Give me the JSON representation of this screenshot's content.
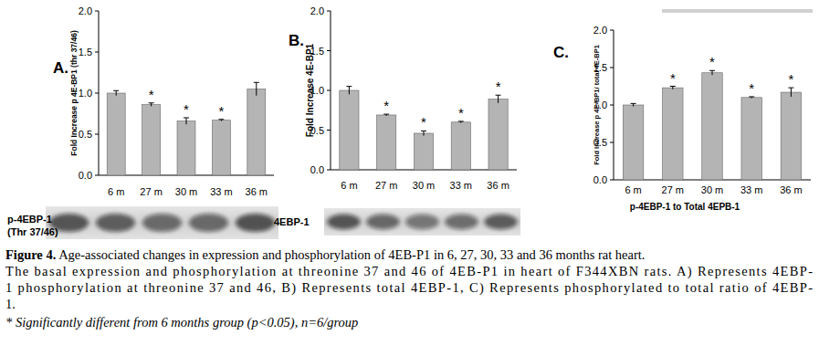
{
  "chart_data": [
    {
      "type": "bar",
      "panel_label": "A.",
      "y_label": "Fold Increase p 4E-BP1 (thr 37/46)",
      "categories": [
        "6 m",
        "27 m",
        "30 m",
        "33 m",
        "36 m"
      ],
      "values": [
        1,
        0.86,
        0.66,
        0.67,
        1.05
      ],
      "error": [
        0.03,
        0.02,
        0.04,
        0.01,
        0.08
      ],
      "annotations": [
        null,
        "*",
        "*",
        "*",
        null
      ],
      "ylim": [
        0,
        2
      ],
      "yticks": [
        {
          "value": 0,
          "label": "0.0"
        },
        0.5,
        {
          "value": 1,
          "label": "1.0"
        },
        1.5,
        {
          "value": 2,
          "label": "2.0"
        }
      ],
      "color": "#b4b4b4",
      "blot_label": [
        "p-4EBP-1",
        "(Thr 37/46)"
      ]
    },
    {
      "type": "bar",
      "panel_label": "B.",
      "y_label": "Fold Increase 4E-BP1",
      "categories": [
        "6 m",
        "27 m",
        "30 m",
        "33 m",
        "36 m"
      ],
      "values": [
        1,
        0.69,
        0.46,
        0.6,
        0.89
      ],
      "error": [
        0.05,
        0.01,
        0.03,
        0.01,
        0.05
      ],
      "annotations": [
        null,
        "*",
        "*",
        "*",
        "*"
      ],
      "ylim": [
        0,
        2
      ],
      "yticks": [
        {
          "value": 0,
          "label": "0.0"
        },
        0.5,
        {
          "value": 1,
          "label": "1.0"
        },
        1.5,
        {
          "value": 2,
          "label": "2.0"
        }
      ],
      "color": "#b4b4b4",
      "blot_label": [
        "4EBP-1"
      ]
    },
    {
      "type": "bar",
      "panel_label": "C.",
      "y_label": "Fold Increase p 4E-BP1/ total 4E-BP1",
      "x_label": "p-4EBP-1 to Total 4EPB-1",
      "categories": [
        "6 m",
        "27 m",
        "30 m",
        "33 m",
        "36 m"
      ],
      "values": [
        1,
        1.23,
        1.43,
        1.1,
        1.17
      ],
      "error": [
        0.02,
        0.02,
        0.03,
        0.01,
        0.06
      ],
      "annotations": [
        null,
        "*",
        "*",
        "*",
        "*"
      ],
      "ylim": [
        0,
        2
      ],
      "yticks": [
        {
          "value": 0,
          "label": "0.0"
        },
        0.5,
        {
          "value": 1,
          "label": "1.0"
        },
        1.5,
        {
          "value": 2,
          "label": "2.0"
        }
      ],
      "color": "#b4b4b4"
    }
  ],
  "caption": {
    "label": "Figure 4.",
    "title": "Age-associated changes in expression and phosphorylation of 4EB-P1 in 6, 27, 30, 33 and 36 months rat heart.",
    "text_lines": [
      "The basal expression and phosphorylation at threonine 37 and 46 of 4EB-P1 in heart of F344XBN rats. A) Represents 4EBP-",
      "1 phosphorylation at threonine 37 and 46, B) Represents total 4EBP-1, C) Represents phosphorylated to total ratio of 4EBP-",
      "1."
    ],
    "footnote": "* Significantly different from 6 months group (p<0.05), n=6/group"
  }
}
